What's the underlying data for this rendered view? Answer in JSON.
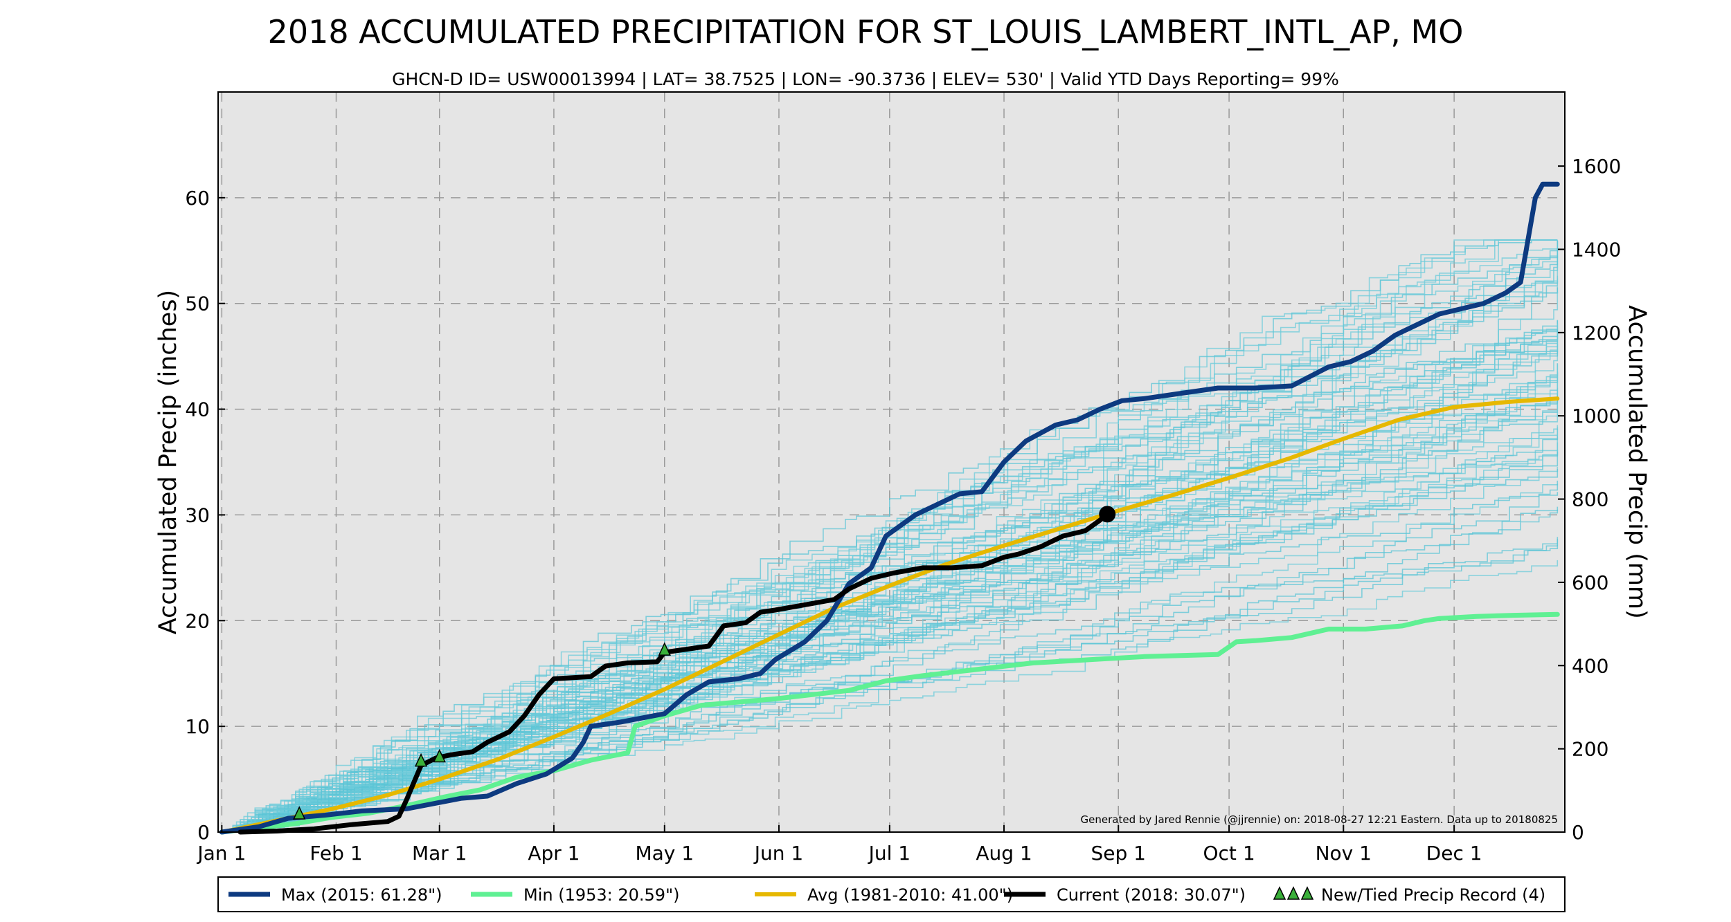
{
  "chart_data": {
    "type": "line",
    "title": "2018 ACCUMULATED PRECIPITATION FOR ST_LOUIS_LAMBERT_INTL_AP, MO",
    "subtitle": "GHCN-D ID= USW00013994 | LAT= 38.7525 | LON= -90.3736 | ELEV= 530' | Valid YTD Days Reporting= 99%",
    "ylabel": "Accumulated Precip (inches)",
    "ylabel_right": "Accumulated Precip (mm)",
    "xlabel": "",
    "x_unit": "day of year",
    "ylim": [
      0,
      70
    ],
    "xlim": [
      -1,
      364
    ],
    "y_ticks": [
      0,
      10,
      20,
      30,
      40,
      50,
      60
    ],
    "y_ticks_right_mm": [
      0,
      200,
      400,
      600,
      800,
      1000,
      1200,
      1400,
      1600
    ],
    "x_ticks": [
      {
        "day": 0,
        "label": "Jan 1"
      },
      {
        "day": 31,
        "label": "Feb 1"
      },
      {
        "day": 59,
        "label": "Mar 1"
      },
      {
        "day": 90,
        "label": "Apr 1"
      },
      {
        "day": 120,
        "label": "May 1"
      },
      {
        "day": 151,
        "label": "Jun 1"
      },
      {
        "day": 181,
        "label": "Jul 1"
      },
      {
        "day": 212,
        "label": "Aug 1"
      },
      {
        "day": 243,
        "label": "Sep 1"
      },
      {
        "day": 273,
        "label": "Oct 1"
      },
      {
        "day": 304,
        "label": "Nov 1"
      },
      {
        "day": 334,
        "label": "Dec 1"
      }
    ],
    "grid": true,
    "credit": "Generated by Jared Rennie (@jjrennie) on: 2018-08-27 12:21 Eastern. Data up to 20180825",
    "series": [
      {
        "name": "Max (2015:  61.28\")",
        "color": "#0d3a80",
        "width": 7,
        "points": [
          [
            0,
            0
          ],
          [
            10,
            0.5
          ],
          [
            18,
            1.3
          ],
          [
            28,
            1.6
          ],
          [
            38,
            2
          ],
          [
            50,
            2.2
          ],
          [
            56,
            2.6
          ],
          [
            65,
            3.2
          ],
          [
            72,
            3.4
          ],
          [
            80,
            4.6
          ],
          [
            88,
            5.5
          ],
          [
            95,
            7
          ],
          [
            98,
            8.5
          ],
          [
            100,
            10
          ],
          [
            108,
            10.4
          ],
          [
            114,
            10.8
          ],
          [
            120,
            11.2
          ],
          [
            126,
            13
          ],
          [
            132,
            14.2
          ],
          [
            140,
            14.5
          ],
          [
            146,
            15
          ],
          [
            150,
            16.3
          ],
          [
            158,
            18
          ],
          [
            164,
            20
          ],
          [
            170,
            23.5
          ],
          [
            176,
            25
          ],
          [
            180,
            28
          ],
          [
            184,
            29
          ],
          [
            188,
            30
          ],
          [
            194,
            31
          ],
          [
            200,
            32
          ],
          [
            206,
            32.2
          ],
          [
            212,
            35
          ],
          [
            218,
            37
          ],
          [
            226,
            38.5
          ],
          [
            232,
            39
          ],
          [
            238,
            40
          ],
          [
            244,
            40.8
          ],
          [
            250,
            41
          ],
          [
            260,
            41.5
          ],
          [
            270,
            42
          ],
          [
            280,
            42
          ],
          [
            290,
            42.2
          ],
          [
            300,
            44
          ],
          [
            306,
            44.5
          ],
          [
            312,
            45.5
          ],
          [
            318,
            47
          ],
          [
            324,
            48
          ],
          [
            330,
            49
          ],
          [
            336,
            49.5
          ],
          [
            342,
            50
          ],
          [
            348,
            51
          ],
          [
            352,
            52
          ],
          [
            356,
            60
          ],
          [
            358,
            61.28
          ],
          [
            362,
            61.28
          ]
        ]
      },
      {
        "name": "Min (1953:  20.59\")",
        "color": "#5ff093",
        "width": 7,
        "points": [
          [
            0,
            0
          ],
          [
            10,
            0.4
          ],
          [
            20,
            0.8
          ],
          [
            30,
            1.4
          ],
          [
            40,
            1.8
          ],
          [
            50,
            2.5
          ],
          [
            60,
            3.3
          ],
          [
            70,
            4
          ],
          [
            80,
            5.2
          ],
          [
            90,
            5.8
          ],
          [
            100,
            6.8
          ],
          [
            110,
            7.5
          ],
          [
            112,
            10
          ],
          [
            120,
            11
          ],
          [
            130,
            12
          ],
          [
            140,
            12.3
          ],
          [
            150,
            12.6
          ],
          [
            160,
            13
          ],
          [
            170,
            13.4
          ],
          [
            180,
            14.3
          ],
          [
            190,
            14.8
          ],
          [
            200,
            15.2
          ],
          [
            210,
            15.6
          ],
          [
            220,
            16
          ],
          [
            230,
            16.2
          ],
          [
            240,
            16.4
          ],
          [
            250,
            16.6
          ],
          [
            260,
            16.7
          ],
          [
            270,
            16.8
          ],
          [
            275,
            18
          ],
          [
            280,
            18.1
          ],
          [
            290,
            18.4
          ],
          [
            300,
            19.2
          ],
          [
            310,
            19.2
          ],
          [
            320,
            19.5
          ],
          [
            326,
            20
          ],
          [
            330,
            20.2
          ],
          [
            340,
            20.4
          ],
          [
            350,
            20.5
          ],
          [
            362,
            20.59
          ]
        ]
      },
      {
        "name": "Avg (1981-2010:  41.00\")",
        "color": "#e6b800",
        "width": 6,
        "points": [
          [
            0,
            0
          ],
          [
            15,
            1.1
          ],
          [
            30,
            2.2
          ],
          [
            45,
            3.5
          ],
          [
            59,
            5
          ],
          [
            75,
            6.9
          ],
          [
            90,
            9
          ],
          [
            105,
            11.2
          ],
          [
            120,
            13.5
          ],
          [
            135,
            16
          ],
          [
            151,
            18.7
          ],
          [
            166,
            21.2
          ],
          [
            181,
            23.3
          ],
          [
            196,
            25.3
          ],
          [
            212,
            27.1
          ],
          [
            228,
            28.8
          ],
          [
            243,
            30.4
          ],
          [
            258,
            31.9
          ],
          [
            273,
            33.5
          ],
          [
            289,
            35.3
          ],
          [
            304,
            37.2
          ],
          [
            319,
            39
          ],
          [
            334,
            40.2
          ],
          [
            349,
            40.7
          ],
          [
            362,
            41
          ]
        ]
      },
      {
        "name": "Current (2018:  30.07\")",
        "color": "#000000",
        "width": 7,
        "points": [
          [
            5,
            0
          ],
          [
            15,
            0.1
          ],
          [
            25,
            0.3
          ],
          [
            35,
            0.7
          ],
          [
            45,
            1
          ],
          [
            48,
            1.5
          ],
          [
            50,
            3
          ],
          [
            54,
            6.3
          ],
          [
            58,
            7
          ],
          [
            62,
            7.3
          ],
          [
            68,
            7.6
          ],
          [
            72,
            8.5
          ],
          [
            78,
            9.5
          ],
          [
            82,
            11
          ],
          [
            86,
            13
          ],
          [
            90,
            14.5
          ],
          [
            100,
            14.7
          ],
          [
            104,
            15.7
          ],
          [
            110,
            16
          ],
          [
            118,
            16.1
          ],
          [
            120,
            17
          ],
          [
            126,
            17.3
          ],
          [
            132,
            17.6
          ],
          [
            136,
            19.5
          ],
          [
            142,
            19.8
          ],
          [
            146,
            20.8
          ],
          [
            150,
            21
          ],
          [
            158,
            21.5
          ],
          [
            166,
            22
          ],
          [
            170,
            23
          ],
          [
            176,
            24
          ],
          [
            182,
            24.5
          ],
          [
            190,
            25
          ],
          [
            198,
            25
          ],
          [
            206,
            25.2
          ],
          [
            212,
            26
          ],
          [
            216,
            26.3
          ],
          [
            222,
            27
          ],
          [
            228,
            28
          ],
          [
            234,
            28.5
          ],
          [
            238,
            29.5
          ],
          [
            240,
            30.07
          ]
        ]
      },
      {
        "name": "New/Tied Precip Record (4)",
        "color": "#3ab03a",
        "marker": "triangle",
        "count": 4,
        "points": [
          [
            21,
            1.7
          ],
          [
            54,
            6.7
          ],
          [
            59,
            7.1
          ],
          [
            120,
            17.2
          ]
        ]
      }
    ],
    "legend": [
      "Max (2015:  61.28\")",
      "Min (1953:  20.59\")",
      "Avg (1981-2010:  41.00\")",
      "Current (2018:  30.07\")",
      "New/Tied Precip Record (4)"
    ],
    "legend_position": "bottom",
    "current_end_value": 30.07
  }
}
